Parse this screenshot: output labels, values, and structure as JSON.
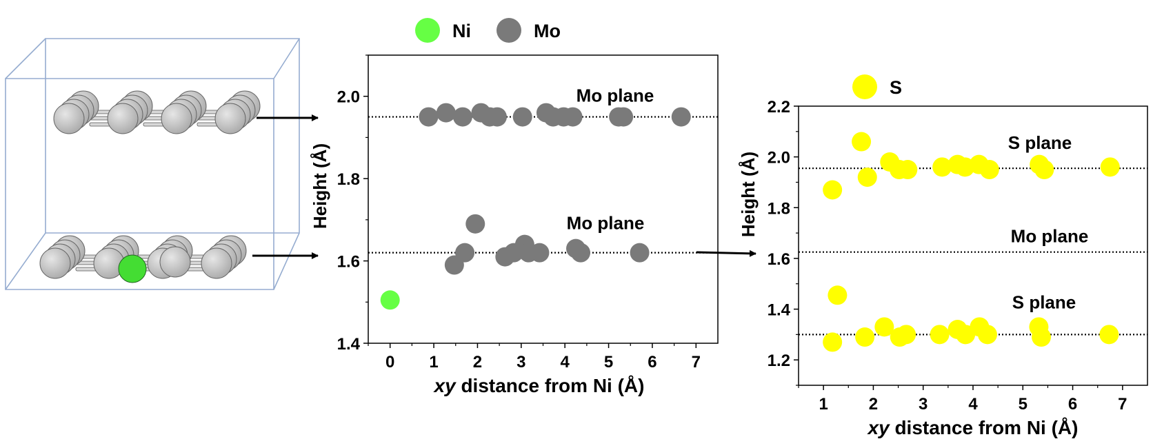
{
  "colors": {
    "ni": "#66ff44",
    "mo": "#7a7a7a",
    "s": "#ffff00",
    "atom_gray": "#c8c8c8",
    "box": "#95acd0"
  },
  "chart_data": [
    {
      "type": "scatter",
      "xlabel_italic": "xy",
      "xlabel": "distance from Ni (Å)",
      "ylabel": "Height (Å)",
      "xlim": [
        -0.5,
        7.5
      ],
      "ylim": [
        1.4,
        2.1
      ],
      "xticks": [
        "0",
        "1",
        "2",
        "3",
        "4",
        "5",
        "6",
        "7"
      ],
      "yticks": [
        "1.4",
        "1.6",
        "1.8",
        "2.0"
      ],
      "legend": [
        {
          "label": "Ni",
          "color": "#66ff44"
        },
        {
          "label": "Mo",
          "color": "#7a7a7a"
        }
      ],
      "reference_lines": [
        {
          "y": 1.95,
          "label": "Mo plane"
        },
        {
          "y": 1.62,
          "label": "Mo plane"
        }
      ],
      "series": [
        {
          "name": "Ni",
          "color": "#66ff44",
          "points": [
            [
              0,
              1.505
            ]
          ]
        },
        {
          "name": "Mo",
          "color": "#7a7a7a",
          "points": [
            [
              0.88,
              1.95
            ],
            [
              1.28,
              1.96
            ],
            [
              1.66,
              1.95
            ],
            [
              2.08,
              1.96
            ],
            [
              2.28,
              1.95
            ],
            [
              2.45,
              1.95
            ],
            [
              3.03,
              1.95
            ],
            [
              3.57,
              1.96
            ],
            [
              3.73,
              1.95
            ],
            [
              3.97,
              1.95
            ],
            [
              4.18,
              1.95
            ],
            [
              5.23,
              1.95
            ],
            [
              5.34,
              1.95
            ],
            [
              6.66,
              1.95
            ],
            [
              1.47,
              1.59
            ],
            [
              1.71,
              1.62
            ],
            [
              1.95,
              1.69
            ],
            [
              2.63,
              1.61
            ],
            [
              2.83,
              1.62
            ],
            [
              3.08,
              1.64
            ],
            [
              3.17,
              1.62
            ],
            [
              3.42,
              1.62
            ],
            [
              4.25,
              1.63
            ],
            [
              4.36,
              1.62
            ],
            [
              5.71,
              1.62
            ]
          ]
        }
      ]
    },
    {
      "type": "scatter",
      "xlabel_italic": "xy",
      "xlabel": "distance from Ni (Å)",
      "ylabel": "Height (Å)",
      "xlim": [
        0.5,
        7.5
      ],
      "ylim": [
        1.1,
        2.2
      ],
      "xticks": [
        "1",
        "2",
        "3",
        "4",
        "5",
        "6",
        "7"
      ],
      "yticks": [
        "1.2",
        "1.4",
        "1.6",
        "1.8",
        "2.0",
        "2.2"
      ],
      "legend": [
        {
          "label": "S",
          "color": "#ffff00"
        }
      ],
      "reference_lines": [
        {
          "y": 1.955,
          "label": "S plane"
        },
        {
          "y": 1.625,
          "label": "Mo plane"
        },
        {
          "y": 1.3,
          "label": "S plane"
        }
      ],
      "series": [
        {
          "name": "S",
          "color": "#ffff00",
          "points": [
            [
              1.18,
              1.87
            ],
            [
              1.76,
              2.06
            ],
            [
              1.88,
              1.92
            ],
            [
              2.33,
              1.98
            ],
            [
              2.52,
              1.95
            ],
            [
              2.69,
              1.95
            ],
            [
              3.38,
              1.96
            ],
            [
              3.69,
              1.97
            ],
            [
              3.84,
              1.96
            ],
            [
              4.12,
              1.97
            ],
            [
              4.33,
              1.95
            ],
            [
              5.33,
              1.97
            ],
            [
              5.43,
              1.95
            ],
            [
              6.75,
              1.96
            ],
            [
              1.18,
              1.27
            ],
            [
              1.28,
              1.455
            ],
            [
              1.83,
              1.29
            ],
            [
              2.22,
              1.33
            ],
            [
              2.53,
              1.29
            ],
            [
              2.66,
              1.3
            ],
            [
              3.33,
              1.3
            ],
            [
              3.69,
              1.32
            ],
            [
              3.85,
              1.3
            ],
            [
              4.13,
              1.33
            ],
            [
              4.29,
              1.3
            ],
            [
              5.32,
              1.33
            ],
            [
              5.37,
              1.29
            ],
            [
              6.73,
              1.3
            ]
          ]
        }
      ]
    }
  ]
}
